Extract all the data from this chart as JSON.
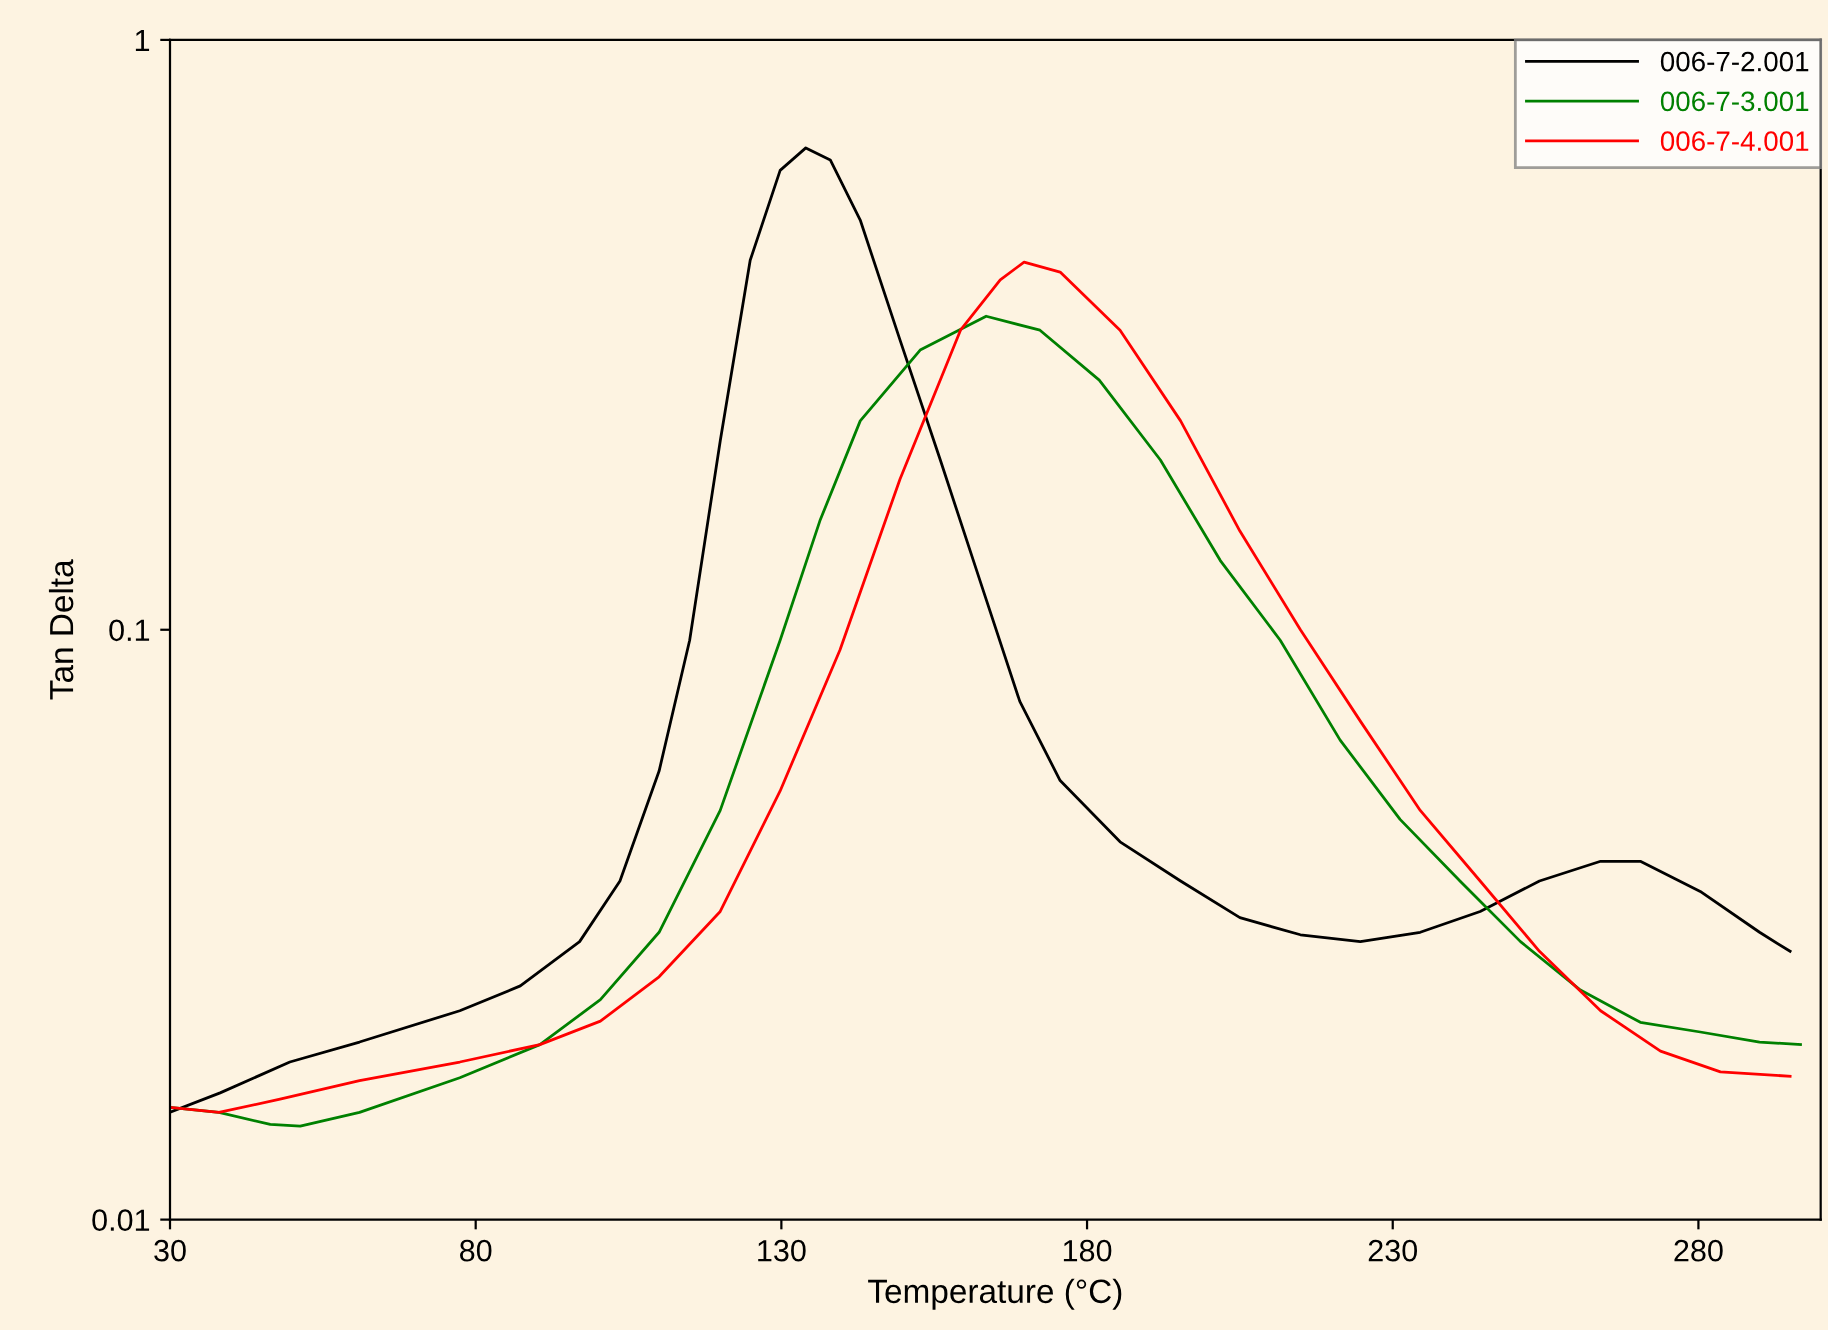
{
  "chart_data": {
    "type": "line",
    "xlabel": "Temperature (°C)",
    "ylabel": "Tan Delta",
    "log": "y",
    "xlim": [
      30,
      300
    ],
    "ylim": [
      0.01,
      1
    ],
    "xticks": [
      30,
      80,
      130,
      180,
      230,
      280
    ],
    "yticks": [
      0.01,
      0.1,
      1
    ],
    "grid": false,
    "legend": "top right",
    "marker": "none",
    "line_style": "solid",
    "series": [
      {
        "name": "006-7-2.001",
        "color": "#000000",
        "x": [
          30,
          38.2,
          49.6,
          61,
          77.4,
          87.3,
          97,
          103.6,
          110,
          115,
          120,
          124.9,
          129.8,
          134,
          138,
          142.9,
          149.4,
          156,
          162.5,
          169,
          175.6,
          185.4,
          195.3,
          205,
          214.9,
          224.7,
          234.5,
          244.3,
          254,
          264,
          270.5,
          280.3,
          290,
          295
        ],
        "values": [
          0.0152,
          0.0164,
          0.0185,
          0.02,
          0.0226,
          0.0249,
          0.0296,
          0.0375,
          0.0576,
          0.096,
          0.209,
          0.423,
          0.601,
          0.656,
          0.626,
          0.495,
          0.31,
          0.194,
          0.121,
          0.0756,
          0.0555,
          0.0437,
          0.0375,
          0.0325,
          0.0304,
          0.0296,
          0.0307,
          0.0333,
          0.0375,
          0.0405,
          0.0405,
          0.036,
          0.0307,
          0.0285
        ]
      },
      {
        "name": "006-7-3.001",
        "color": "#008000",
        "x": [
          30,
          38,
          46.4,
          51.3,
          61,
          77.4,
          90.5,
          100.4,
          110,
          120,
          129.8,
          136.3,
          142.9,
          152.7,
          163.5,
          172.3,
          182,
          192,
          201.8,
          211.6,
          221.4,
          231.2,
          241,
          250.9,
          260.7,
          270.5,
          280.3,
          290,
          296.7
        ],
        "values": [
          0.0155,
          0.0152,
          0.0145,
          0.0144,
          0.0152,
          0.0174,
          0.0198,
          0.0236,
          0.0307,
          0.0494,
          0.096,
          0.153,
          0.226,
          0.298,
          0.34,
          0.322,
          0.265,
          0.194,
          0.131,
          0.096,
          0.065,
          0.0477,
          0.0375,
          0.0296,
          0.0245,
          0.0216,
          0.0208,
          0.02,
          0.0198
        ]
      },
      {
        "name": "006-7-4.001",
        "color": "#ff0000",
        "x": [
          30,
          38,
          48,
          61,
          77.4,
          90.5,
          100.4,
          110,
          120,
          129.8,
          139.6,
          149.4,
          159.3,
          165.8,
          169.7,
          175.6,
          185.4,
          195.3,
          205,
          214.9,
          224.7,
          234.5,
          244.3,
          254,
          264,
          273.8,
          283.6,
          295
        ],
        "values": [
          0.0155,
          0.0152,
          0.016,
          0.0172,
          0.0185,
          0.0198,
          0.0217,
          0.0258,
          0.0333,
          0.0533,
          0.0925,
          0.18,
          0.322,
          0.392,
          0.42,
          0.404,
          0.322,
          0.226,
          0.147,
          0.1,
          0.07,
          0.0494,
          0.0375,
          0.0285,
          0.0226,
          0.0193,
          0.0178,
          0.0175
        ]
      }
    ]
  }
}
